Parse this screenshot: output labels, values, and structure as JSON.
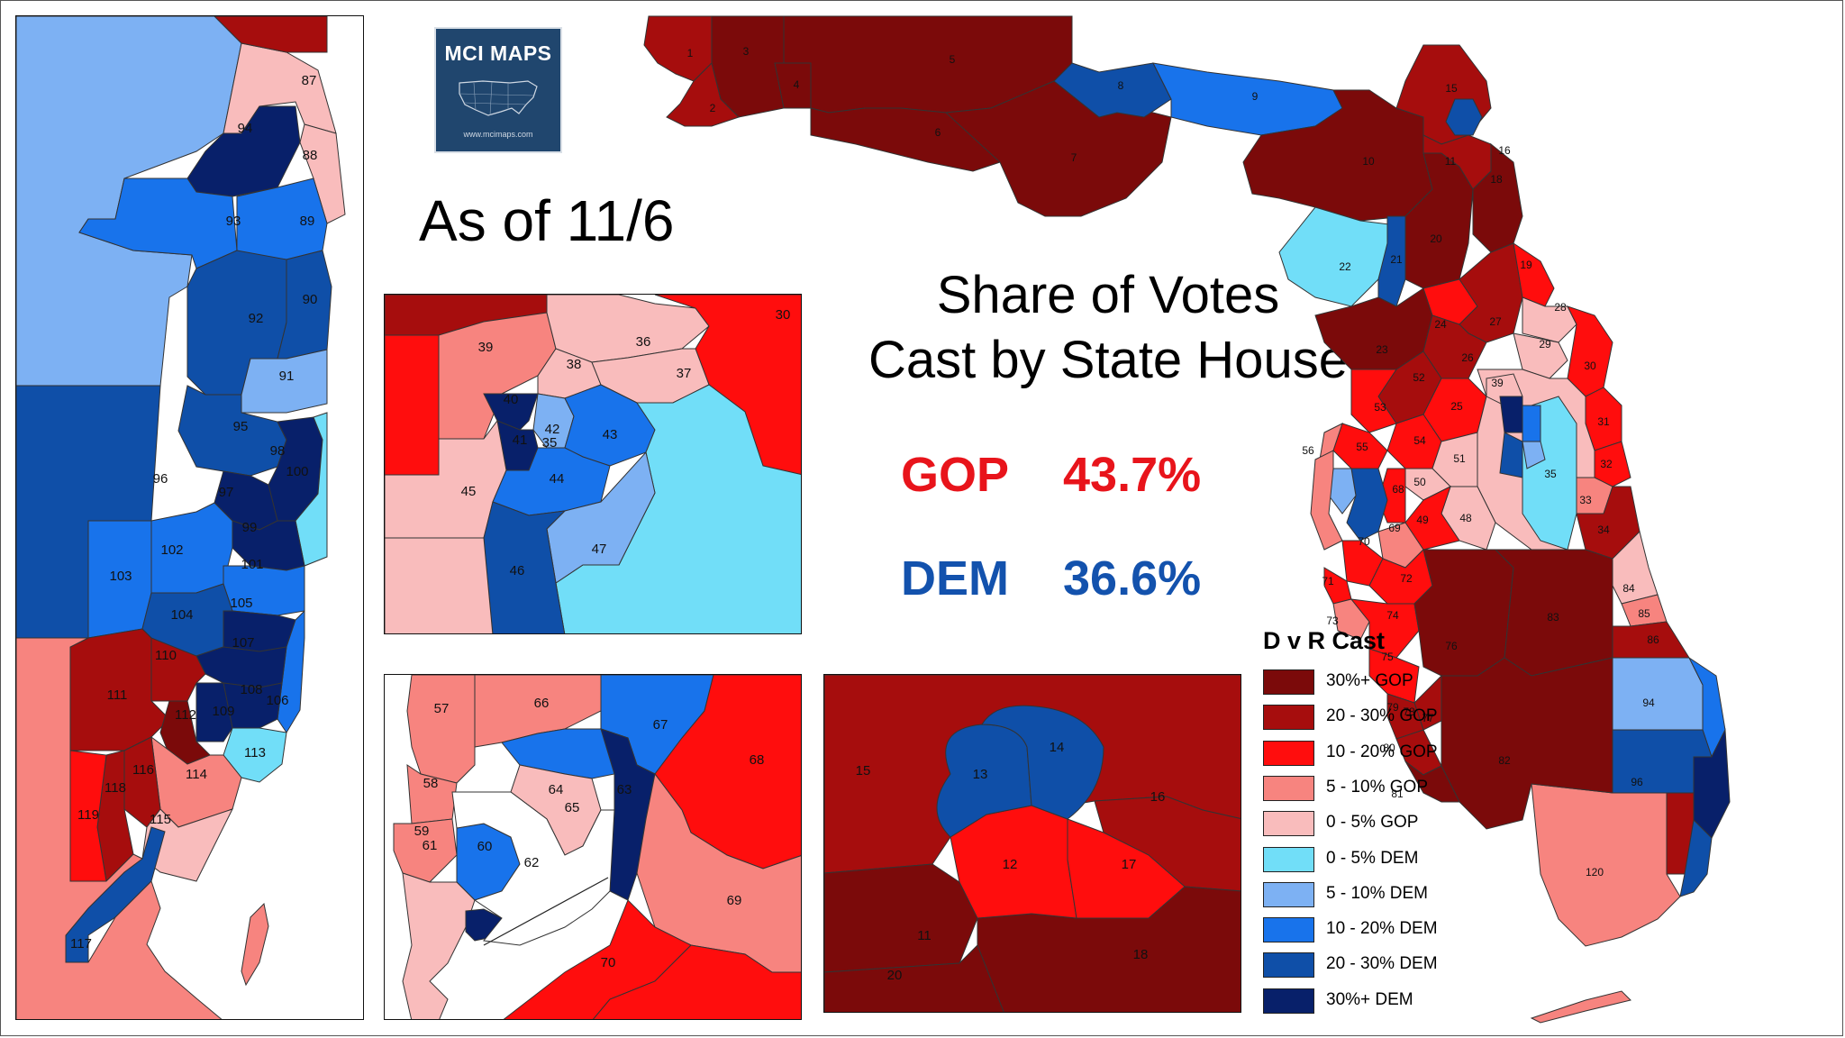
{
  "logo": {
    "text": "MCI MAPS",
    "url": "www.mcimaps.com"
  },
  "as_of": "As of 11/6",
  "headline": {
    "line1": "Share of Votes",
    "line2": "Cast by State House"
  },
  "stats": [
    {
      "party": "GOP",
      "value": "43.7%",
      "color": "#e8141b"
    },
    {
      "party": "DEM",
      "value": "36.6%",
      "color": "#1352ad"
    }
  ],
  "legend": {
    "title": "D v R Cast",
    "items": [
      {
        "label": "30%+ GOP",
        "color": "#7b0a0a"
      },
      {
        "label": "20 - 30% GOP",
        "color": "#a60d0d"
      },
      {
        "label": "10 - 20% GOP",
        "color": "#ff0d0d"
      },
      {
        "label": "5 - 10% GOP",
        "color": "#f7847f"
      },
      {
        "label": "0 - 5% GOP",
        "color": "#f9bcbc"
      },
      {
        "label": "0 - 5% DEM",
        "color": "#71def8"
      },
      {
        "label": "5 - 10% DEM",
        "color": "#7db1f3"
      },
      {
        "label": "10 - 20% DEM",
        "color": "#1873eb"
      },
      {
        "label": "20 - 30% DEM",
        "color": "#0f4fa8"
      },
      {
        "label": "30%+ DEM",
        "color": "#08206a"
      }
    ]
  },
  "district_labels": {
    "statewide": [
      "1",
      "2",
      "3",
      "4",
      "5",
      "6",
      "7",
      "8",
      "9",
      "10",
      "11",
      "15",
      "16",
      "18",
      "19",
      "20",
      "21",
      "22",
      "23",
      "24",
      "25",
      "26",
      "27",
      "28",
      "29",
      "30",
      "31",
      "32",
      "33",
      "34",
      "35",
      "39",
      "48",
      "49",
      "50",
      "51",
      "52",
      "53",
      "54",
      "55",
      "56",
      "68",
      "69",
      "70",
      "71",
      "72",
      "73",
      "74",
      "75",
      "76",
      "77",
      "78",
      "79",
      "80",
      "81",
      "82",
      "83",
      "84",
      "85",
      "86",
      "94",
      "96",
      "120"
    ],
    "southeast_inset": [
      "87",
      "88",
      "89",
      "90",
      "91",
      "92",
      "93",
      "94",
      "95",
      "96",
      "97",
      "98",
      "99",
      "100",
      "101",
      "102",
      "103",
      "104",
      "105",
      "106",
      "107",
      "108",
      "109",
      "110",
      "111",
      "112",
      "113",
      "114",
      "115",
      "116",
      "117",
      "118",
      "119"
    ],
    "orlando_inset": [
      "30",
      "35",
      "36",
      "37",
      "38",
      "39",
      "40",
      "41",
      "42",
      "43",
      "44",
      "45",
      "46",
      "47"
    ],
    "tampa_inset": [
      "57",
      "58",
      "59",
      "60",
      "61",
      "62",
      "63",
      "64",
      "65",
      "66",
      "67",
      "68",
      "69",
      "70"
    ],
    "jacksonville_inset": [
      "11",
      "12",
      "13",
      "14",
      "15",
      "16",
      "17",
      "18",
      "20"
    ]
  }
}
